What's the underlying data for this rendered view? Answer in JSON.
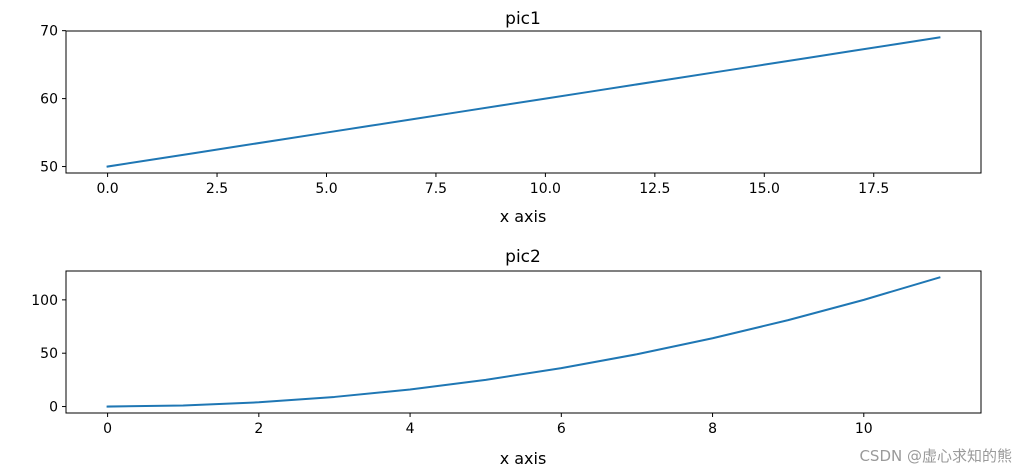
{
  "chart_data": [
    {
      "type": "line",
      "title": "pic1",
      "xlabel": "x axis",
      "ylabel": "",
      "x": [
        0,
        1,
        2,
        3,
        4,
        5,
        6,
        7,
        8,
        9,
        10,
        11,
        12,
        13,
        14,
        15,
        16,
        17,
        18,
        19
      ],
      "series": [
        {
          "values": [
            50,
            51,
            52,
            53,
            54,
            55,
            56,
            57,
            58,
            59,
            60,
            61,
            62,
            63,
            64,
            65,
            66,
            67,
            68,
            69
          ],
          "color": "#1f77b4"
        }
      ],
      "xlim": [
        -0.95,
        19.95
      ],
      "ylim": [
        49.05,
        69.95
      ],
      "xticks": [
        0,
        2.5,
        5,
        7.5,
        10,
        12.5,
        15,
        17.5
      ],
      "xtick_labels": [
        "0.0",
        "2.5",
        "5.0",
        "7.5",
        "10.0",
        "12.5",
        "15.0",
        "17.5"
      ],
      "yticks": [
        50,
        60,
        70
      ],
      "ytick_labels": [
        "50",
        "60",
        "70"
      ],
      "grid": false,
      "legend": "none"
    },
    {
      "type": "line",
      "title": "pic2",
      "xlabel": "x axis",
      "ylabel": "",
      "x": [
        0,
        1,
        2,
        3,
        4,
        5,
        6,
        7,
        8,
        9,
        10,
        11
      ],
      "series": [
        {
          "values": [
            0,
            1,
            4,
            9,
            16,
            25,
            36,
            49,
            64,
            81,
            100,
            121
          ],
          "color": "#1f77b4"
        }
      ],
      "xlim": [
        -0.55,
        11.55
      ],
      "ylim": [
        -6.05,
        127.05
      ],
      "xticks": [
        0,
        2,
        4,
        6,
        8,
        10
      ],
      "xtick_labels": [
        "0",
        "2",
        "4",
        "6",
        "8",
        "10"
      ],
      "yticks": [
        0,
        50,
        100
      ],
      "ytick_labels": [
        "0",
        "50",
        "100"
      ],
      "grid": false,
      "legend": "none"
    }
  ],
  "watermark": "CSDN @虚心求知的熊"
}
